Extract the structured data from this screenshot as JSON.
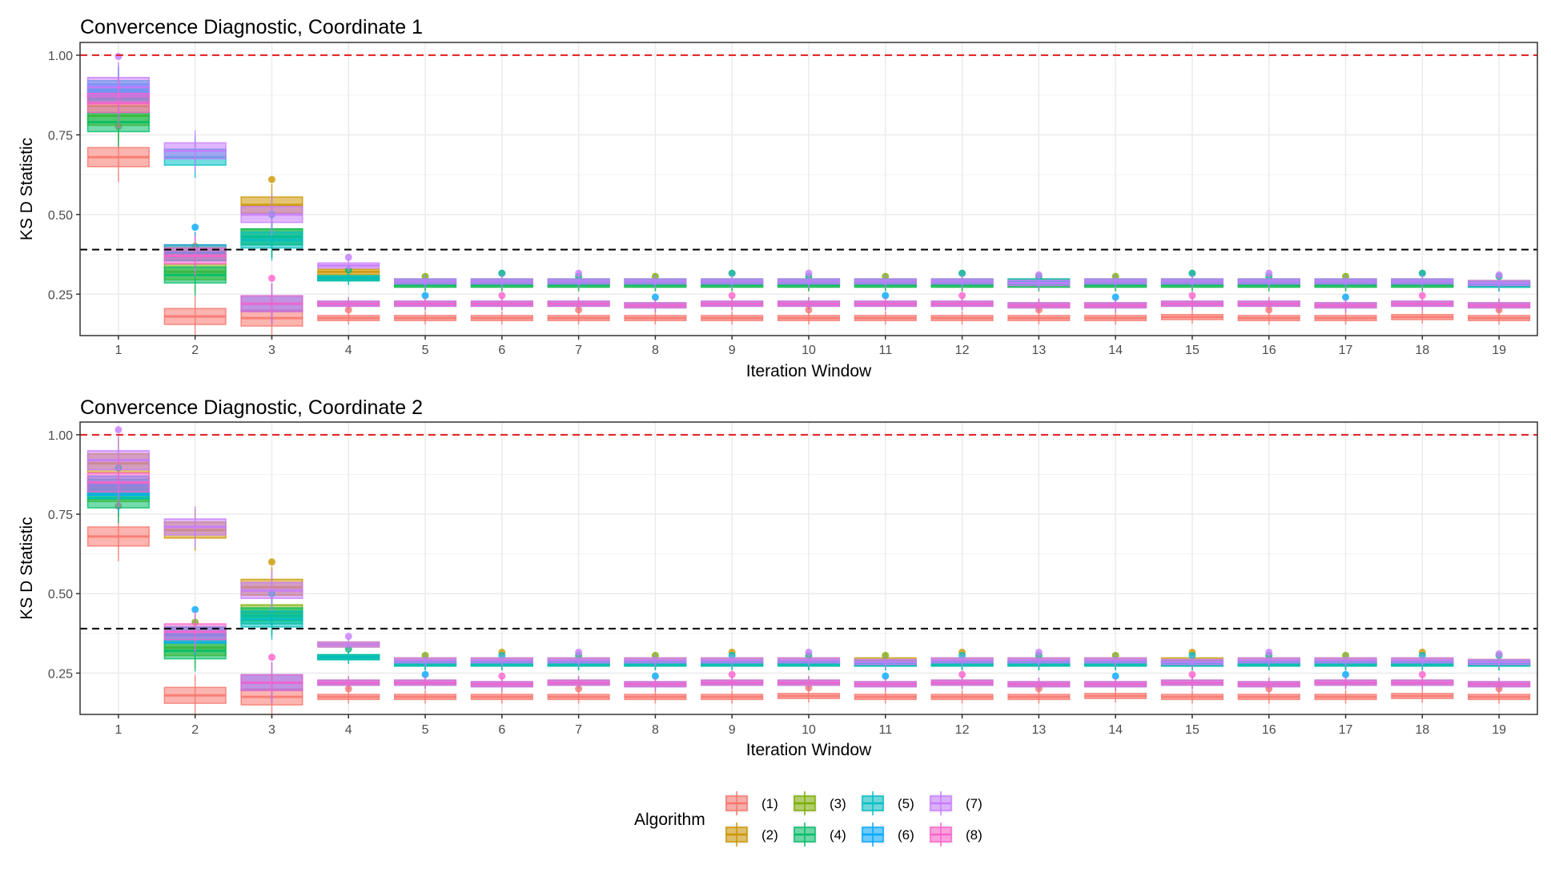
{
  "chart_data": [
    {
      "type": "box",
      "title": "Convercence Diagnostic, Coordinate 1",
      "xlabel": "Iteration Window",
      "ylabel": "KS D Statistic",
      "x_categories": [
        "1",
        "2",
        "3",
        "4",
        "5",
        "6",
        "7",
        "8",
        "9",
        "10",
        "11",
        "12",
        "13",
        "14",
        "15",
        "16",
        "17",
        "18",
        "19"
      ],
      "ylim": [
        0.12,
        1.04
      ],
      "y_ticks": [
        "0.25",
        "0.50",
        "0.75",
        "1.00"
      ],
      "y_tick_values": [
        0.25,
        0.5,
        0.75,
        1.0
      ],
      "reference_lines": [
        {
          "value": 1.0,
          "color": "#e31a1c",
          "style": "dashed"
        },
        {
          "value": 0.39,
          "color": "#000000",
          "style": "dashed"
        }
      ],
      "grid": true,
      "series": [
        {
          "name": "(1)",
          "medians": [
            0.68,
            0.18,
            0.175,
            0.175,
            0.175,
            0.175,
            0.175,
            0.175,
            0.175,
            0.175,
            0.175,
            0.175,
            0.175,
            0.175,
            0.178,
            0.175,
            0.175,
            0.178,
            0.175
          ]
        },
        {
          "name": "(2)",
          "medians": [
            0.87,
            0.38,
            0.53,
            0.32,
            0.29,
            0.29,
            0.29,
            0.29,
            0.29,
            0.29,
            0.29,
            0.29,
            0.29,
            0.29,
            0.29,
            0.29,
            0.29,
            0.29,
            0.285
          ]
        },
        {
          "name": "(3)",
          "medians": [
            0.81,
            0.32,
            0.43,
            0.3,
            0.28,
            0.28,
            0.28,
            0.28,
            0.28,
            0.28,
            0.28,
            0.28,
            0.28,
            0.28,
            0.28,
            0.28,
            0.28,
            0.28,
            0.28
          ]
        },
        {
          "name": "(4)",
          "medians": [
            0.79,
            0.31,
            0.43,
            0.3,
            0.28,
            0.28,
            0.28,
            0.28,
            0.28,
            0.28,
            0.28,
            0.28,
            0.28,
            0.28,
            0.28,
            0.28,
            0.28,
            0.28,
            0.28
          ]
        },
        {
          "name": "(5)",
          "medians": [
            0.89,
            0.68,
            0.42,
            0.3,
            0.29,
            0.29,
            0.29,
            0.29,
            0.29,
            0.29,
            0.29,
            0.29,
            0.29,
            0.29,
            0.29,
            0.29,
            0.29,
            0.29,
            0.28
          ]
        },
        {
          "name": "(6)",
          "medians": [
            0.88,
            0.38,
            0.22,
            0.22,
            0.22,
            0.22,
            0.22,
            0.215,
            0.22,
            0.22,
            0.22,
            0.22,
            0.215,
            0.215,
            0.22,
            0.22,
            0.215,
            0.22,
            0.215
          ]
        },
        {
          "name": "(7)",
          "medians": [
            0.9,
            0.7,
            0.5,
            0.34,
            0.29,
            0.29,
            0.29,
            0.29,
            0.29,
            0.29,
            0.29,
            0.29,
            0.285,
            0.29,
            0.29,
            0.29,
            0.29,
            0.29,
            0.285
          ]
        },
        {
          "name": "(8)",
          "medians": [
            0.85,
            0.37,
            0.22,
            0.22,
            0.22,
            0.22,
            0.22,
            0.215,
            0.22,
            0.22,
            0.22,
            0.22,
            0.215,
            0.215,
            0.22,
            0.22,
            0.215,
            0.22,
            0.215
          ]
        }
      ]
    },
    {
      "type": "box",
      "title": "Convercence Diagnostic, Coordinate 2",
      "xlabel": "Iteration Window",
      "ylabel": "KS D Statistic",
      "x_categories": [
        "1",
        "2",
        "3",
        "4",
        "5",
        "6",
        "7",
        "8",
        "9",
        "10",
        "11",
        "12",
        "13",
        "14",
        "15",
        "16",
        "17",
        "18",
        "19"
      ],
      "ylim": [
        0.12,
        1.04
      ],
      "y_ticks": [
        "0.25",
        "0.50",
        "0.75",
        "1.00"
      ],
      "y_tick_values": [
        0.25,
        0.5,
        0.75,
        1.0
      ],
      "reference_lines": [
        {
          "value": 1.0,
          "color": "#e31a1c",
          "style": "dashed"
        },
        {
          "value": 0.39,
          "color": "#000000",
          "style": "dashed"
        }
      ],
      "grid": true,
      "series": [
        {
          "name": "(1)",
          "medians": [
            0.68,
            0.18,
            0.175,
            0.175,
            0.175,
            0.175,
            0.175,
            0.175,
            0.175,
            0.178,
            0.175,
            0.175,
            0.175,
            0.178,
            0.175,
            0.175,
            0.175,
            0.178,
            0.175
          ]
        },
        {
          "name": "(2)",
          "medians": [
            0.91,
            0.7,
            0.52,
            0.34,
            0.29,
            0.29,
            0.29,
            0.29,
            0.29,
            0.29,
            0.29,
            0.29,
            0.29,
            0.29,
            0.29,
            0.29,
            0.29,
            0.29,
            0.285
          ]
        },
        {
          "name": "(3)",
          "medians": [
            0.82,
            0.33,
            0.44,
            0.3,
            0.28,
            0.28,
            0.28,
            0.28,
            0.28,
            0.28,
            0.28,
            0.28,
            0.28,
            0.28,
            0.28,
            0.28,
            0.28,
            0.28,
            0.28
          ]
        },
        {
          "name": "(4)",
          "medians": [
            0.8,
            0.32,
            0.43,
            0.3,
            0.28,
            0.28,
            0.28,
            0.28,
            0.28,
            0.28,
            0.28,
            0.28,
            0.28,
            0.28,
            0.28,
            0.28,
            0.28,
            0.28,
            0.28
          ]
        },
        {
          "name": "(5)",
          "medians": [
            0.83,
            0.37,
            0.42,
            0.3,
            0.28,
            0.28,
            0.28,
            0.28,
            0.28,
            0.28,
            0.28,
            0.28,
            0.28,
            0.28,
            0.28,
            0.28,
            0.28,
            0.28,
            0.28
          ]
        },
        {
          "name": "(6)",
          "medians": [
            0.84,
            0.37,
            0.22,
            0.22,
            0.22,
            0.215,
            0.22,
            0.215,
            0.22,
            0.22,
            0.215,
            0.22,
            0.215,
            0.215,
            0.22,
            0.215,
            0.22,
            0.22,
            0.215
          ]
        },
        {
          "name": "(7)",
          "medians": [
            0.92,
            0.71,
            0.51,
            0.34,
            0.29,
            0.29,
            0.29,
            0.29,
            0.29,
            0.29,
            0.285,
            0.29,
            0.29,
            0.29,
            0.285,
            0.29,
            0.29,
            0.29,
            0.285
          ]
        },
        {
          "name": "(8)",
          "medians": [
            0.85,
            0.38,
            0.22,
            0.22,
            0.22,
            0.215,
            0.22,
            0.215,
            0.22,
            0.22,
            0.215,
            0.22,
            0.215,
            0.215,
            0.22,
            0.215,
            0.22,
            0.22,
            0.215
          ]
        }
      ]
    }
  ],
  "legend": {
    "title": "Algorithm",
    "placement": "bottom",
    "items": [
      {
        "label": "(1)",
        "color": "#F8766D"
      },
      {
        "label": "(2)",
        "color": "#CD9600"
      },
      {
        "label": "(3)",
        "color": "#7CAE00"
      },
      {
        "label": "(4)",
        "color": "#00BE67"
      },
      {
        "label": "(5)",
        "color": "#00BFC4"
      },
      {
        "label": "(6)",
        "color": "#00A9FF"
      },
      {
        "label": "(7)",
        "color": "#C77CFF"
      },
      {
        "label": "(8)",
        "color": "#FF61CC"
      }
    ]
  }
}
